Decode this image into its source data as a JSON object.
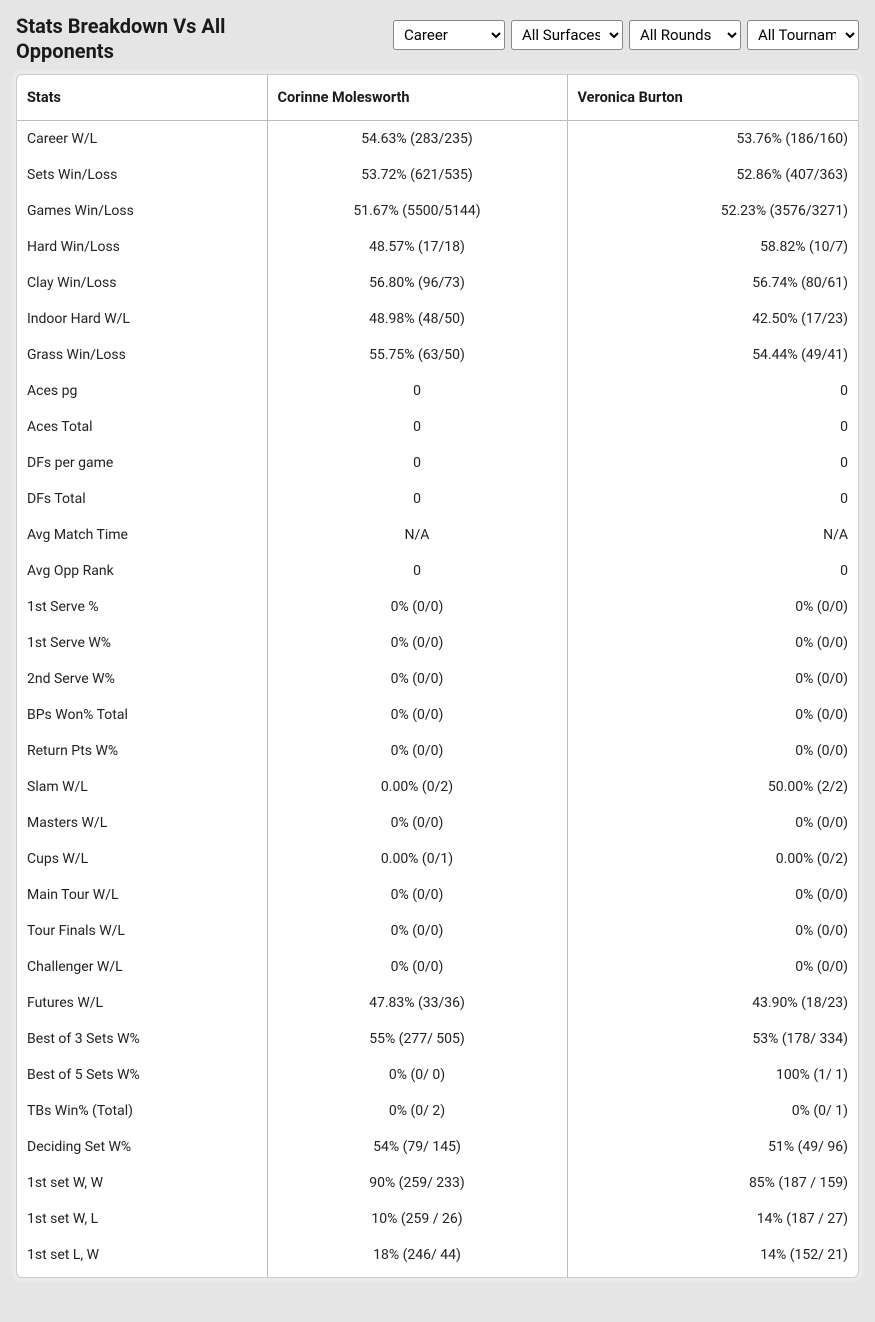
{
  "header": {
    "title": "Stats Breakdown Vs All Opponents"
  },
  "filters": {
    "period": {
      "selected": "Career",
      "options": [
        "Career"
      ]
    },
    "surface": {
      "selected": "All Surfaces",
      "options": [
        "All Surfaces"
      ]
    },
    "round": {
      "selected": "All Rounds",
      "options": [
        "All Rounds"
      ]
    },
    "tournament": {
      "selected": "All Tournaments",
      "options": [
        "All Tournaments"
      ]
    }
  },
  "table": {
    "columns": [
      "Stats",
      "Corinne Molesworth",
      "Veronica Burton"
    ],
    "rows": [
      [
        "Career W/L",
        "54.63% (283/235)",
        "53.76% (186/160)"
      ],
      [
        "Sets Win/Loss",
        "53.72% (621/535)",
        "52.86% (407/363)"
      ],
      [
        "Games Win/Loss",
        "51.67% (5500/5144)",
        "52.23% (3576/3271)"
      ],
      [
        "Hard Win/Loss",
        "48.57% (17/18)",
        "58.82% (10/7)"
      ],
      [
        "Clay Win/Loss",
        "56.80% (96/73)",
        "56.74% (80/61)"
      ],
      [
        "Indoor Hard W/L",
        "48.98% (48/50)",
        "42.50% (17/23)"
      ],
      [
        "Grass Win/Loss",
        "55.75% (63/50)",
        "54.44% (49/41)"
      ],
      [
        "Aces pg",
        "0",
        "0"
      ],
      [
        "Aces Total",
        "0",
        "0"
      ],
      [
        "DFs per game",
        "0",
        "0"
      ],
      [
        "DFs Total",
        "0",
        "0"
      ],
      [
        "Avg Match Time",
        "N/A",
        "N/A"
      ],
      [
        "Avg Opp Rank",
        "0",
        "0"
      ],
      [
        "1st Serve %",
        "0% (0/0)",
        "0% (0/0)"
      ],
      [
        "1st Serve W%",
        "0% (0/0)",
        "0% (0/0)"
      ],
      [
        "2nd Serve W%",
        "0% (0/0)",
        "0% (0/0)"
      ],
      [
        "BPs Won% Total",
        "0% (0/0)",
        "0% (0/0)"
      ],
      [
        "Return Pts W%",
        "0% (0/0)",
        "0% (0/0)"
      ],
      [
        "Slam W/L",
        "0.00% (0/2)",
        "50.00% (2/2)"
      ],
      [
        "Masters W/L",
        "0% (0/0)",
        "0% (0/0)"
      ],
      [
        "Cups W/L",
        "0.00% (0/1)",
        "0.00% (0/2)"
      ],
      [
        "Main Tour W/L",
        "0% (0/0)",
        "0% (0/0)"
      ],
      [
        "Tour Finals W/L",
        "0% (0/0)",
        "0% (0/0)"
      ],
      [
        "Challenger W/L",
        "0% (0/0)",
        "0% (0/0)"
      ],
      [
        "Futures W/L",
        "47.83% (33/36)",
        "43.90% (18/23)"
      ],
      [
        "Best of 3 Sets W%",
        "55% (277/ 505)",
        "53% (178/ 334)"
      ],
      [
        "Best of 5 Sets W%",
        "0% (0/ 0)",
        "100% (1/ 1)"
      ],
      [
        "TBs Win% (Total)",
        "0% (0/ 2)",
        "0% (0/ 1)"
      ],
      [
        "Deciding Set W%",
        "54% (79/ 145)",
        "51% (49/ 96)"
      ],
      [
        "1st set W, W",
        "90% (259/ 233)",
        "85% (187 / 159)"
      ],
      [
        "1st set W, L",
        "10% (259 / 26)",
        "14% (187 / 27)"
      ],
      [
        "1st set L, W",
        "18% (246/ 44)",
        "14% (152/ 21)"
      ]
    ]
  },
  "styling": {
    "background_color": "#e5e5e5",
    "table_background": "#ffffff",
    "border_color": "#bbbbbb",
    "text_color": "#1a1a1a",
    "font_size_title": 20,
    "font_size_header": 14.5,
    "font_size_cell": 14
  }
}
